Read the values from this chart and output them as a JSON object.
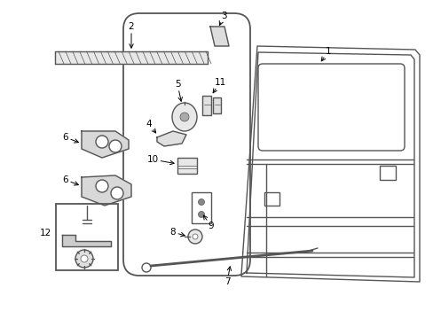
{
  "background_color": "#ffffff",
  "line_color": "#555555",
  "label_color": "#000000",
  "arrow_color": "#000000",
  "fig_width": 4.89,
  "fig_height": 3.6,
  "dpi": 100,
  "label_fontsize": 7.5
}
